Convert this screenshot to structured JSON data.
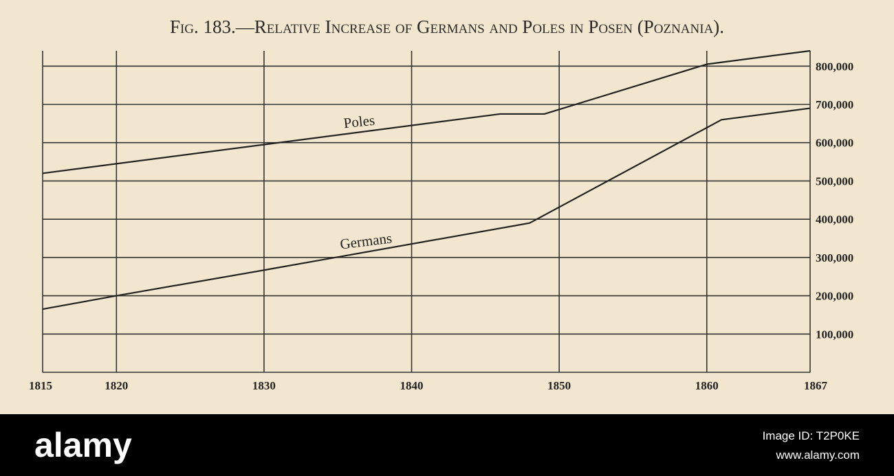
{
  "chart_data": {
    "type": "line",
    "title": "Fig. 183.—Relative Increase of Germans and Poles in Posen (Poznania).",
    "xlim": [
      1815,
      1867
    ],
    "xticks": [
      1815,
      1820,
      1830,
      1840,
      1850,
      1860,
      1867
    ],
    "ylim": [
      0,
      840000
    ],
    "yticks": [
      {
        "value": 100000,
        "label": "100,000"
      },
      {
        "value": 200000,
        "label": "200,000"
      },
      {
        "value": 300000,
        "label": "300,000"
      },
      {
        "value": 400000,
        "label": "400,000"
      },
      {
        "value": 500000,
        "label": "500,000"
      },
      {
        "value": 600000,
        "label": "600,000"
      },
      {
        "value": 700000,
        "label": "700,000"
      },
      {
        "value": 800000,
        "label": "800,000"
      }
    ],
    "grid": true,
    "series": [
      {
        "name": "Poles",
        "color": "#222222",
        "x": [
          1815,
          1830,
          1846,
          1849,
          1860,
          1867
        ],
        "values": [
          520000,
          595000,
          675000,
          675000,
          805000,
          840000
        ]
      },
      {
        "name": "Germans",
        "color": "#222222",
        "x": [
          1815,
          1820,
          1830,
          1848,
          1861,
          1867
        ],
        "values": [
          165000,
          200000,
          267000,
          390000,
          660000,
          690000
        ]
      }
    ]
  },
  "watermark": {
    "logo": "alamy",
    "image_id": "Image ID: T2P0KE",
    "site": "www.alamy.com"
  }
}
